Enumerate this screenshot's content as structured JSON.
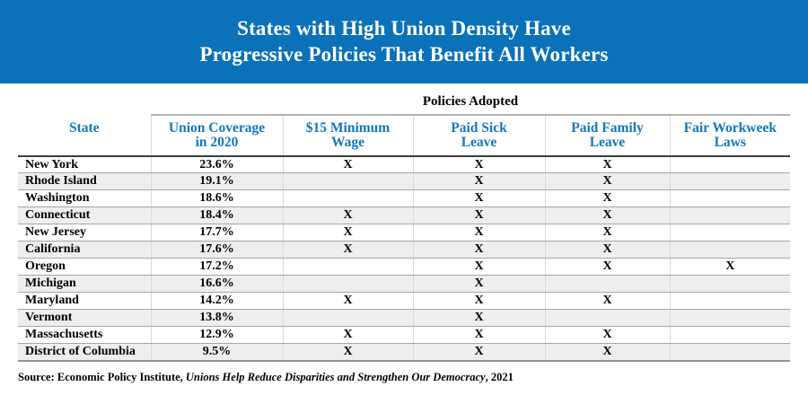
{
  "banner": {
    "title_line1": "States with High Union Density Have",
    "title_line2": "Progressive Policies That Benefit All Workers"
  },
  "policies_group_header": "Policies Adopted",
  "chart_data": {
    "type": "table",
    "title": "States with High Union Density Have Progressive Policies That Benefit All Workers",
    "group_header_over_policy_columns": "Policies Adopted",
    "columns": [
      "State",
      "Union Coverage in 2020",
      "$15 Minimum Wage",
      "Paid Sick Leave",
      "Paid Family Leave",
      "Fair Workweek Laws"
    ],
    "headers_two_line": [
      {
        "line1": "State",
        "line2": ""
      },
      {
        "line1": "Union Coverage",
        "line2": "in 2020"
      },
      {
        "line1": "$15 Minimum",
        "line2": "Wage"
      },
      {
        "line1": "Paid Sick",
        "line2": "Leave"
      },
      {
        "line1": "Paid Family",
        "line2": "Leave"
      },
      {
        "line1": "Fair Workweek",
        "line2": "Laws"
      }
    ],
    "mark": "X",
    "rows": [
      {
        "state": "New York",
        "union_coverage_2020": "23.6%",
        "min_wage_15": true,
        "paid_sick_leave": true,
        "paid_family_leave": true,
        "fair_workweek_laws": false
      },
      {
        "state": "Rhode Island",
        "union_coverage_2020": "19.1%",
        "min_wage_15": false,
        "paid_sick_leave": true,
        "paid_family_leave": true,
        "fair_workweek_laws": false
      },
      {
        "state": "Washington",
        "union_coverage_2020": "18.6%",
        "min_wage_15": false,
        "paid_sick_leave": true,
        "paid_family_leave": true,
        "fair_workweek_laws": false
      },
      {
        "state": "Connecticut",
        "union_coverage_2020": "18.4%",
        "min_wage_15": true,
        "paid_sick_leave": true,
        "paid_family_leave": true,
        "fair_workweek_laws": false
      },
      {
        "state": "New Jersey",
        "union_coverage_2020": "17.7%",
        "min_wage_15": true,
        "paid_sick_leave": true,
        "paid_family_leave": true,
        "fair_workweek_laws": false
      },
      {
        "state": "California",
        "union_coverage_2020": "17.6%",
        "min_wage_15": true,
        "paid_sick_leave": true,
        "paid_family_leave": true,
        "fair_workweek_laws": false
      },
      {
        "state": "Oregon",
        "union_coverage_2020": "17.2%",
        "min_wage_15": false,
        "paid_sick_leave": true,
        "paid_family_leave": true,
        "fair_workweek_laws": true
      },
      {
        "state": "Michigan",
        "union_coverage_2020": "16.6%",
        "min_wage_15": false,
        "paid_sick_leave": true,
        "paid_family_leave": false,
        "fair_workweek_laws": false
      },
      {
        "state": "Maryland",
        "union_coverage_2020": "14.2%",
        "min_wage_15": true,
        "paid_sick_leave": true,
        "paid_family_leave": true,
        "fair_workweek_laws": false
      },
      {
        "state": "Vermont",
        "union_coverage_2020": "13.8%",
        "min_wage_15": false,
        "paid_sick_leave": true,
        "paid_family_leave": false,
        "fair_workweek_laws": false
      },
      {
        "state": "Massachusetts",
        "union_coverage_2020": "12.9%",
        "min_wage_15": true,
        "paid_sick_leave": true,
        "paid_family_leave": true,
        "fair_workweek_laws": false
      },
      {
        "state": "District of Columbia",
        "union_coverage_2020": "9.5%",
        "min_wage_15": true,
        "paid_sick_leave": true,
        "paid_family_leave": true,
        "fair_workweek_laws": false
      }
    ]
  },
  "source": {
    "prefix": "Source: Economic Policy Institute, ",
    "work_title": "Unions Help Reduce Disparities and Strengthen Our Democracy",
    "suffix": ", 2021"
  },
  "colors": {
    "banner_blue": "#0b71b8",
    "header_text_blue": "#1377bd",
    "alt_row_bg": "#eeeeee"
  }
}
